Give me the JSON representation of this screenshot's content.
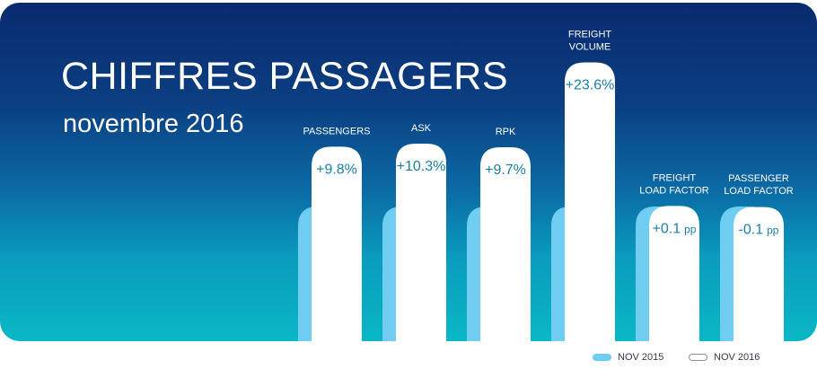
{
  "header": {
    "title": "CHIFFRES PASSAGERS",
    "subtitle": "novembre 2016"
  },
  "legend": [
    {
      "label": "NOV 2015",
      "color": "#6fcdf1"
    },
    {
      "label": "NOV 2016",
      "color": "#ffffff"
    }
  ],
  "colors": {
    "bar_2015": "#6fcdf1",
    "bar_2016": "#ffffff",
    "value_text": "#1b7fa6",
    "category_text": "#ffffff"
  },
  "chart_data": {
    "type": "bar",
    "categories": [
      [
        "PASSENGERS"
      ],
      [
        "ASK"
      ],
      [
        "RPK"
      ],
      [
        "FREIGHT",
        "VOLUME"
      ],
      [
        "FREIGHT",
        "LOAD FACTOR"
      ],
      [
        "PASSENGER",
        "LOAD FACTOR"
      ]
    ],
    "series": [
      {
        "name": "NOV 2015",
        "values": [
          100,
          100,
          100,
          100,
          100,
          100
        ]
      },
      {
        "name": "NOV 2016",
        "values": [
          109.8,
          110.3,
          109.7,
          123.6,
          100.1,
          99.9
        ]
      }
    ],
    "data_labels": [
      {
        "main": "+9.8%",
        "unit": ""
      },
      {
        "main": "+10.3%",
        "unit": ""
      },
      {
        "main": "+9.7%",
        "unit": ""
      },
      {
        "main": "+23.6%",
        "unit": ""
      },
      {
        "main": "+0.1",
        "unit": "pp"
      },
      {
        "main": "-0.1",
        "unit": "pp"
      }
    ]
  }
}
